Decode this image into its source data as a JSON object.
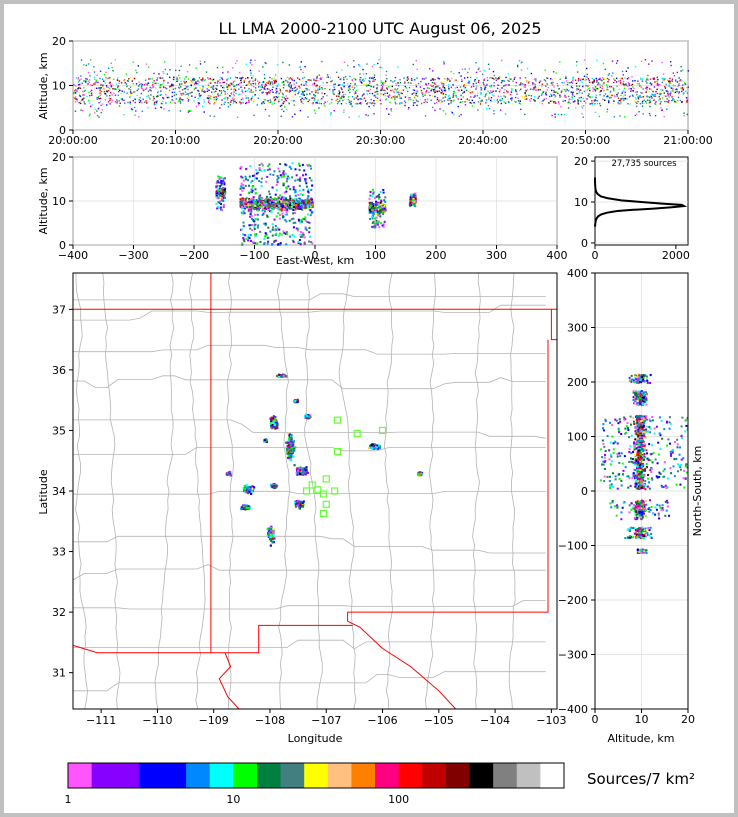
{
  "title": "LL LMA 2000-2100 UTC August 06, 2025",
  "colors": {
    "frame_bg": "#c0c0c0",
    "state_border": "#ff0000",
    "county_border": "#b4b4b4",
    "flash_marker": "#66ff33",
    "grid": "#dddddd"
  },
  "chart_data": [
    {
      "id": "time-height",
      "type": "scatter",
      "ylabel": "Altitude, km",
      "ylim": [
        0,
        20
      ],
      "yticks": [
        0,
        10,
        20
      ],
      "xlim": [
        "20:00:00",
        "21:00:00"
      ],
      "xtick_labels": [
        "20:00:00",
        "20:10:00",
        "20:20:00",
        "20:30:00",
        "20:40:00",
        "20:50:00",
        "21:00:00"
      ],
      "source_altitude_band_km": [
        3,
        16
      ],
      "source_altitude_core_km": [
        6,
        12
      ],
      "active_period_minutes": [
        0,
        60
      ]
    },
    {
      "id": "east-west-altitude",
      "type": "scatter",
      "xlabel": "East-West, km",
      "ylabel": "Altitude, km",
      "xlim": [
        -400,
        400
      ],
      "ylim": [
        0,
        20
      ],
      "xticks": [
        -400,
        -300,
        -200,
        -100,
        0,
        100,
        200,
        300,
        400
      ],
      "yticks": [
        0,
        10,
        20
      ],
      "clusters": [
        {
          "x_range": [
            -165,
            -150
          ],
          "alt_range": [
            8,
            16
          ]
        },
        {
          "x_range": [
            -125,
            -5
          ],
          "alt_range": [
            0,
            19
          ]
        },
        {
          "x_range": [
            88,
            115
          ],
          "alt_range": [
            4,
            13
          ]
        },
        {
          "x_range": [
            155,
            165
          ],
          "alt_range": [
            9,
            12
          ]
        }
      ]
    },
    {
      "id": "altitude-histogram",
      "type": "line",
      "annotation": "27,735 sources",
      "xlim": [
        0,
        2300
      ],
      "ylim": [
        -0.5,
        21
      ],
      "xticks": [
        0,
        2000
      ],
      "yticks": [
        0,
        10,
        20
      ],
      "x": [
        0,
        8,
        20,
        40,
        80,
        160,
        300,
        550,
        950,
        1450,
        1900,
        2200,
        2150,
        1700,
        1150,
        650,
        320,
        140,
        60,
        25,
        10,
        4,
        1,
        0
      ],
      "y": [
        4.0,
        4.8,
        5.5,
        6.0,
        6.5,
        7.0,
        7.4,
        7.8,
        8.1,
        8.4,
        8.7,
        9.0,
        9.3,
        9.6,
        10.0,
        10.4,
        10.9,
        11.4,
        12.0,
        12.6,
        13.3,
        14.0,
        15.0,
        16.0
      ]
    },
    {
      "id": "plan-view-map",
      "type": "scatter",
      "xlabel": "Longitude",
      "ylabel": "Latitude",
      "xlim": [
        -111.5,
        -102.9
      ],
      "ylim": [
        30.4,
        37.6
      ],
      "xticks": [
        -111,
        -110,
        -109,
        -108,
        -107,
        -106,
        -105,
        -104,
        -103
      ],
      "yticks": [
        31,
        32,
        33,
        34,
        35,
        36,
        37
      ],
      "source_clusters": [
        {
          "lon": -107.8,
          "lat": 35.92,
          "spread": [
            0.12,
            0.03
          ]
        },
        {
          "lon": -107.55,
          "lat": 35.5,
          "spread": [
            0.05,
            0.03
          ]
        },
        {
          "lon": -107.35,
          "lat": 35.25,
          "spread": [
            0.08,
            0.05
          ]
        },
        {
          "lon": -107.95,
          "lat": 35.15,
          "spread": [
            0.1,
            0.15
          ]
        },
        {
          "lon": -107.65,
          "lat": 34.75,
          "spread": [
            0.1,
            0.35
          ]
        },
        {
          "lon": -107.45,
          "lat": 34.35,
          "spread": [
            0.15,
            0.1
          ]
        },
        {
          "lon": -108.4,
          "lat": 34.05,
          "spread": [
            0.15,
            0.1
          ]
        },
        {
          "lon": -107.95,
          "lat": 34.1,
          "spread": [
            0.08,
            0.05
          ]
        },
        {
          "lon": -108.75,
          "lat": 34.3,
          "spread": [
            0.05,
            0.04
          ]
        },
        {
          "lon": -108.45,
          "lat": 33.75,
          "spread": [
            0.12,
            0.05
          ]
        },
        {
          "lon": -108.0,
          "lat": 33.3,
          "spread": [
            0.08,
            0.2
          ]
        },
        {
          "lon": -107.5,
          "lat": 33.8,
          "spread": [
            0.12,
            0.1
          ]
        },
        {
          "lon": -106.15,
          "lat": 34.75,
          "spread": [
            0.15,
            0.05
          ]
        },
        {
          "lon": -105.35,
          "lat": 34.3,
          "spread": [
            0.06,
            0.04
          ]
        },
        {
          "lon": -108.1,
          "lat": 34.85,
          "spread": [
            0.04,
            0.03
          ]
        }
      ],
      "flash_markers": [
        {
          "lon": -106.8,
          "lat": 35.17
        },
        {
          "lon": -106.45,
          "lat": 34.95
        },
        {
          "lon": -106.0,
          "lat": 35.0
        },
        {
          "lon": -106.8,
          "lat": 34.65
        },
        {
          "lon": -107.0,
          "lat": 34.2
        },
        {
          "lon": -107.25,
          "lat": 34.1
        },
        {
          "lon": -107.35,
          "lat": 34.0
        },
        {
          "lon": -107.15,
          "lat": 34.02
        },
        {
          "lon": -106.85,
          "lat": 34.0
        },
        {
          "lon": -107.05,
          "lat": 33.95
        },
        {
          "lon": -107.0,
          "lat": 33.78
        },
        {
          "lon": -107.05,
          "lat": 33.63
        }
      ]
    },
    {
      "id": "altitude-north-south",
      "type": "scatter",
      "xlabel": "Altitude, km",
      "ylabel": "North-South, km",
      "xlim": [
        0,
        20
      ],
      "ylim": [
        -400,
        400
      ],
      "xticks": [
        0,
        10,
        20
      ],
      "yticks": [
        -400,
        -300,
        -200,
        -100,
        0,
        100,
        200,
        300,
        400
      ],
      "clusters": [
        {
          "ns_range": [
            200,
            215
          ],
          "alt_range": [
            7,
            12
          ]
        },
        {
          "ns_range": [
            160,
            185
          ],
          "alt_range": [
            8,
            11
          ]
        },
        {
          "ns_range": [
            5,
            140
          ],
          "alt_range": [
            1,
            20
          ]
        },
        {
          "ns_range": [
            -50,
            -15
          ],
          "alt_range": [
            3,
            16
          ]
        },
        {
          "ns_range": [
            -85,
            -65
          ],
          "alt_range": [
            6,
            12
          ]
        },
        {
          "ns_range": [
            -112,
            -105
          ],
          "alt_range": [
            9,
            11
          ]
        }
      ]
    },
    {
      "id": "density-colorbar",
      "type": "heatmap",
      "label": "Sources/7 km²",
      "tick_labels": [
        "1",
        "10",
        "100"
      ],
      "scale": "log",
      "range": [
        1,
        1000
      ],
      "colors": [
        "#ff55ff",
        "#8800ff",
        "#8800ff",
        "#0000ff",
        "#0000ff",
        "#0088ff",
        "#00ffff",
        "#00ff00",
        "#008040",
        "#408080",
        "#ffff00",
        "#ffc080",
        "#ff8000",
        "#ff0080",
        "#ff0000",
        "#c00000",
        "#800000",
        "#000000",
        "#808080",
        "#c0c0c0",
        "#ffffff"
      ]
    }
  ]
}
